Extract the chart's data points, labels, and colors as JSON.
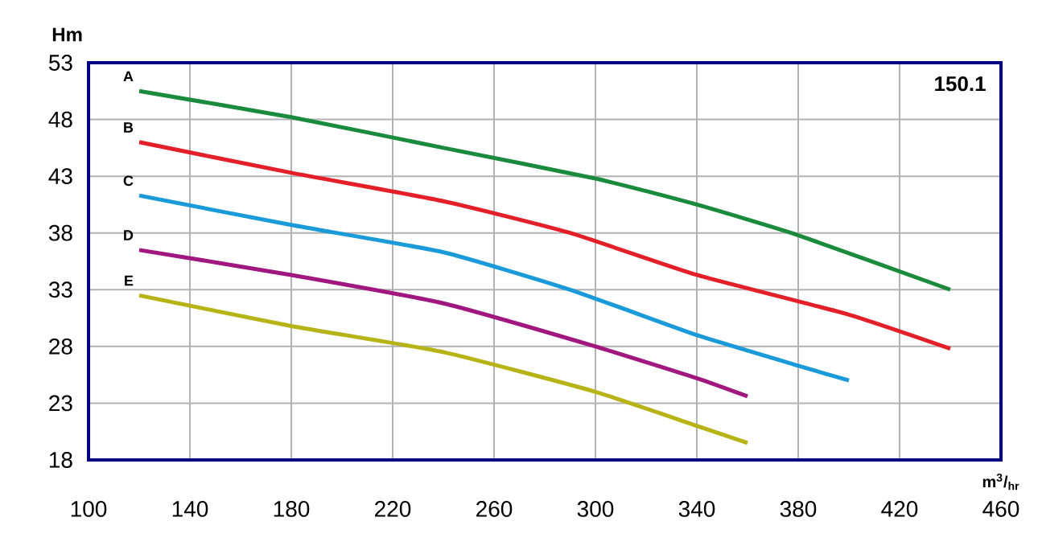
{
  "chart_data": {
    "type": "line",
    "xlabel": "m$^{3}$/$_{hr}$",
    "ylabel": "Hm",
    "annotations": [
      "150.1"
    ],
    "xlim": [
      100,
      460
    ],
    "xticks": [
      100,
      140,
      180,
      220,
      260,
      300,
      340,
      380,
      420,
      460
    ],
    "ylim": [
      18,
      53
    ],
    "yticks": [
      18,
      23,
      28,
      33,
      38,
      43,
      48,
      53
    ],
    "grid": true,
    "series": [
      {
        "name": "A",
        "color": "#1a8a3c",
        "x": [
          120,
          180,
          240,
          300,
          340,
          380,
          440
        ],
        "values": [
          50.5,
          48.2,
          45.5,
          42.8,
          40.5,
          37.8,
          33.0
        ]
      },
      {
        "name": "B",
        "color": "#e3202a",
        "x": [
          120,
          180,
          240,
          290,
          340,
          400,
          440
        ],
        "values": [
          46,
          43.3,
          40.8,
          38,
          34.3,
          30.8,
          27.8
        ]
      },
      {
        "name": "C",
        "color": "#1a9ad8",
        "x": [
          120,
          180,
          240,
          290,
          340,
          380,
          400
        ],
        "values": [
          41.3,
          38.7,
          36.3,
          33,
          29,
          26.3,
          25
        ]
      },
      {
        "name": "D",
        "color": "#a0177f",
        "x": [
          120,
          180,
          240,
          300,
          340,
          360
        ],
        "values": [
          36.5,
          34.3,
          31.8,
          28,
          25.2,
          23.6
        ]
      },
      {
        "name": "E",
        "color": "#b5b315",
        "x": [
          120,
          180,
          240,
          300,
          340,
          360
        ],
        "values": [
          32.5,
          29.8,
          27.5,
          24,
          21,
          19.5
        ]
      }
    ]
  }
}
